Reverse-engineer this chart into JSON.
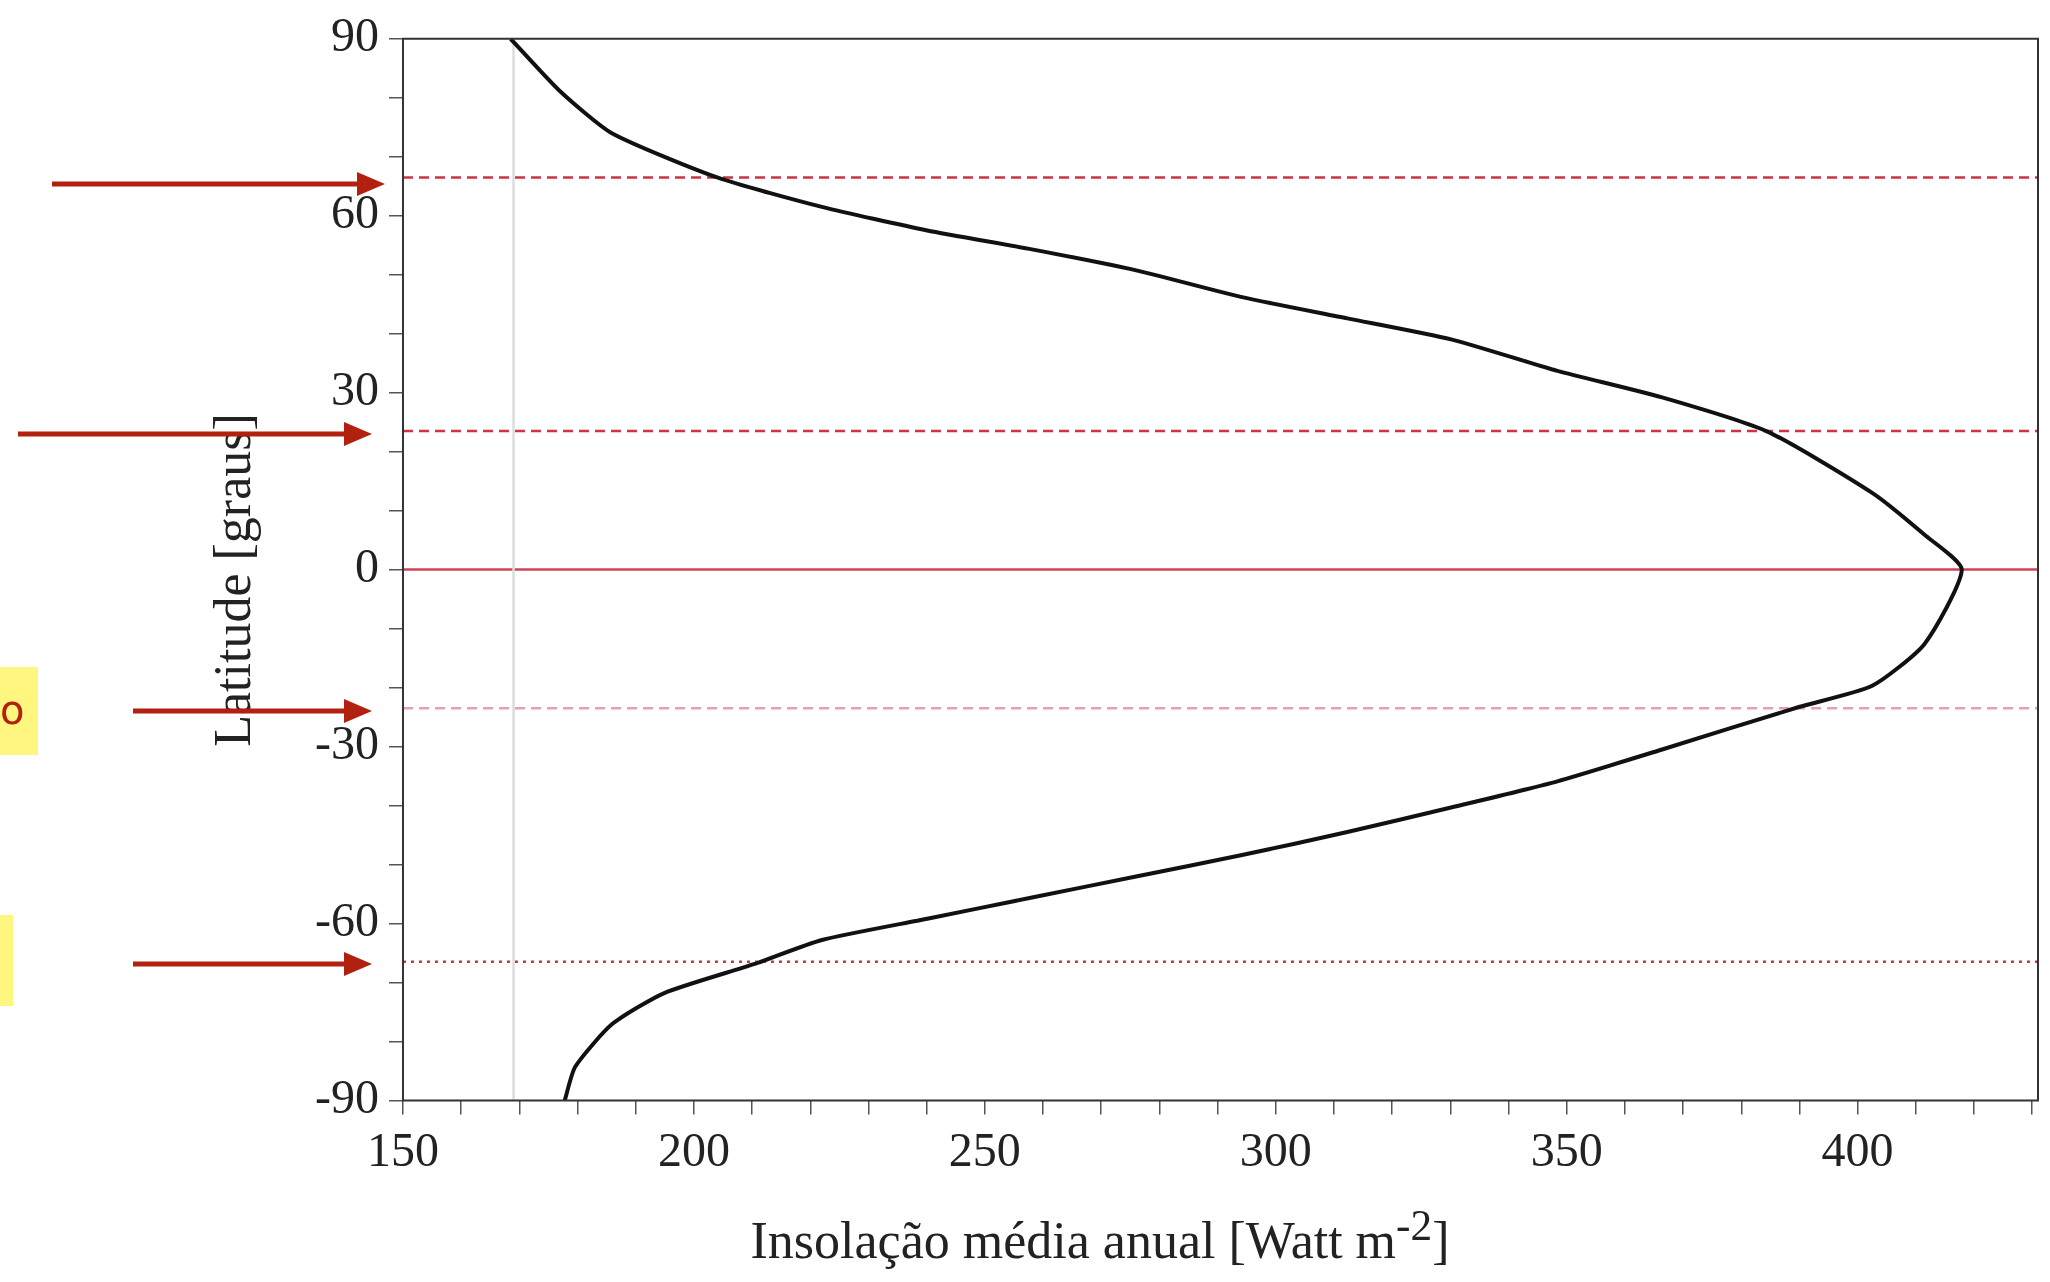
{
  "chart_data": {
    "type": "line",
    "xlabel": "Insolação média anual [Watt m$^{-2}$]",
    "ylabel": "Latitude [graus]",
    "series": [
      {
        "color": "#111111",
        "x": [
          168.5,
          176.9,
          185.9,
          204.0,
          222.0,
          240.1,
          258.1,
          276.2,
          294.2,
          312.3,
          330.3,
          348.4,
          366.4,
          384.5,
          402.5,
          411.5,
          417.9,
          411.5,
          402.5,
          389.9,
          366.4,
          348.4,
          330.3,
          312.3,
          294.2,
          276.2,
          258.1,
          240.1,
          222.0,
          210.3,
          194.9,
          185.9,
          179.6,
          177.8
        ],
        "values": [
          90,
          81.2,
          74.0,
          66.5,
          61.5,
          57.5,
          54.3,
          50.7,
          46.2,
          42.6,
          39.0,
          33.7,
          29.2,
          23.4,
          13.0,
          5.9,
          0,
          -12.6,
          -19.7,
          -23.3,
          -30.5,
          -35.9,
          -40.3,
          -44.5,
          -48.4,
          -52.0,
          -55.6,
          -59.2,
          -62.8,
          -66.9,
          -71.8,
          -77.1,
          -84.3,
          -90
        ]
      }
    ],
    "xlim": [
      150,
      431
    ],
    "xticks": [
      150,
      {
        "value": 160,
        "label": null
      },
      {
        "value": 170,
        "label": null
      },
      {
        "value": 180,
        "label": null
      },
      {
        "value": 190,
        "label": null
      },
      200,
      {
        "value": 210,
        "label": null
      },
      {
        "value": 220,
        "label": null
      },
      {
        "value": 230,
        "label": null
      },
      {
        "value": 240,
        "label": null
      },
      250,
      {
        "value": 260,
        "label": null
      },
      {
        "value": 270,
        "label": null
      },
      {
        "value": 280,
        "label": null
      },
      {
        "value": 290,
        "label": null
      },
      300,
      {
        "value": 310,
        "label": null
      },
      {
        "value": 320,
        "label": null
      },
      {
        "value": 330,
        "label": null
      },
      {
        "value": 340,
        "label": null
      },
      350,
      {
        "value": 360,
        "label": null
      },
      {
        "value": 370,
        "label": null
      },
      {
        "value": 380,
        "label": null
      },
      {
        "value": 390,
        "label": null
      },
      400,
      {
        "value": 410,
        "label": null
      },
      {
        "value": 420,
        "label": null
      },
      {
        "value": 430,
        "label": null
      }
    ],
    "ylim": [
      -90,
      90
    ],
    "yticks": [
      -90,
      {
        "value": -80,
        "label": null
      },
      {
        "value": -70,
        "label": null
      },
      -60,
      {
        "value": -50,
        "label": null
      },
      {
        "value": -40,
        "label": null
      },
      -30,
      {
        "value": -20,
        "label": null
      },
      {
        "value": -10,
        "label": null
      },
      0,
      {
        "value": 10,
        "label": null
      },
      {
        "value": 20,
        "label": null
      },
      30,
      {
        "value": 40,
        "label": null
      },
      {
        "value": 50,
        "label": null
      },
      60,
      {
        "value": 70,
        "label": null
      },
      {
        "value": 80,
        "label": null
      },
      90
    ],
    "grid": false,
    "legend": false,
    "marker": "none",
    "line_style": "solid",
    "ref_lines": [
      {
        "axis": "y",
        "value": 66.5,
        "color": "#cc3344",
        "line_style": "dashed"
      },
      {
        "axis": "y",
        "value": 23.5,
        "color": "#cc3344",
        "line_style": "dashed"
      },
      {
        "axis": "y",
        "value": 0,
        "color": "#cc4455",
        "line_style": "solid"
      },
      {
        "axis": "y",
        "value": -23.5,
        "color": "#e8a0a8",
        "line_style": "dashed"
      },
      {
        "axis": "y",
        "value": -66.5,
        "color": "#cc3344",
        "line_style": "dotted"
      },
      {
        "axis": "x",
        "value": 169,
        "color": "#dddddd",
        "line_style": "solid"
      }
    ],
    "annotations": [
      "o"
    ]
  }
}
